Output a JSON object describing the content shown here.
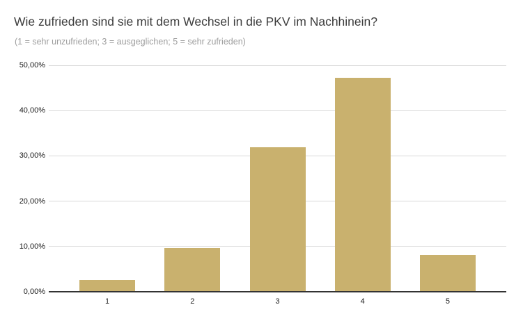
{
  "chart_data": {
    "type": "bar",
    "title": "Wie zufrieden sind sie mit dem Wechsel in die PKV im Nachhinein?",
    "subtitle": "(1 = sehr unzufrieden; 3 = ausgeglichen; 5 = sehr zufrieden)",
    "categories": [
      "1",
      "2",
      "3",
      "4",
      "5"
    ],
    "values": [
      2.6,
      9.6,
      31.9,
      47.2,
      8.2
    ],
    "value_unit": "percent",
    "xlabel": "",
    "ylabel": "",
    "ylim": [
      0,
      50
    ],
    "y_ticks": [
      0,
      10,
      20,
      30,
      40,
      50
    ],
    "y_tick_labels": [
      "0,00%",
      "10,00%",
      "20,00%",
      "30,00%",
      "40,00%",
      "50,00%"
    ],
    "grid": true,
    "legend": "none",
    "bar_color": "#c9b16e",
    "colors": {
      "background": "#ffffff",
      "title": "#3c3c3c",
      "subtitle": "#9e9e9e",
      "gridline": "#d9d9d9",
      "axis_line": "#333333",
      "tick_label": "#1a1a1a"
    }
  }
}
